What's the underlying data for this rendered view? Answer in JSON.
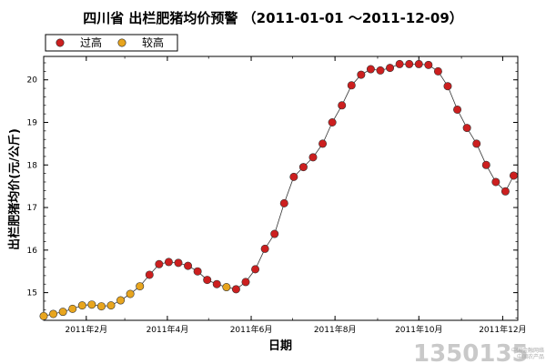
{
  "chart_data": {
    "type": "scatter",
    "title": "四川省 出栏肥猪均价预警 （2011-01-01 ～2011-12-09）",
    "xlabel": "日期",
    "ylabel": "出栏肥猪均价(元/公斤)",
    "xlim": [
      "2011-01-01",
      "2011-12-12"
    ],
    "ylim": [
      14.35,
      20.55
    ],
    "yticks": [
      15,
      16,
      17,
      18,
      19,
      20
    ],
    "xticks": [
      {
        "date": "2011-02-01",
        "label": "2011年2月"
      },
      {
        "date": "2011-04-01",
        "label": "2011年4月"
      },
      {
        "date": "2011-06-01",
        "label": "2011年6月"
      },
      {
        "date": "2011-08-01",
        "label": "2011年8月"
      },
      {
        "date": "2011-10-01",
        "label": "2011年10月"
      },
      {
        "date": "2011-12-01",
        "label": "2011年12月"
      }
    ],
    "grid": false,
    "legend": {
      "placement": "top-left",
      "entries": [
        {
          "name": "过高",
          "color": "#cc1f1f"
        },
        {
          "name": "较高",
          "color": "#e8a51e"
        }
      ]
    },
    "series": [
      {
        "name": "较高",
        "color": "#e8a51e",
        "points": [
          {
            "x": "2011-01-01",
            "y": 14.45
          },
          {
            "x": "2011-01-08",
            "y": 14.5
          },
          {
            "x": "2011-01-15",
            "y": 14.55
          },
          {
            "x": "2011-01-22",
            "y": 14.62
          },
          {
            "x": "2011-01-29",
            "y": 14.7
          },
          {
            "x": "2011-02-05",
            "y": 14.72
          },
          {
            "x": "2011-02-12",
            "y": 14.68
          },
          {
            "x": "2011-02-19",
            "y": 14.7
          },
          {
            "x": "2011-02-26",
            "y": 14.82
          },
          {
            "x": "2011-03-05",
            "y": 14.97
          },
          {
            "x": "2011-03-12",
            "y": 15.15
          },
          {
            "x": "2011-05-14",
            "y": 15.13
          }
        ]
      },
      {
        "name": "过高",
        "color": "#cc1f1f",
        "points": [
          {
            "x": "2011-03-19",
            "y": 15.42
          },
          {
            "x": "2011-03-26",
            "y": 15.67
          },
          {
            "x": "2011-04-02",
            "y": 15.72
          },
          {
            "x": "2011-04-09",
            "y": 15.7
          },
          {
            "x": "2011-04-16",
            "y": 15.63
          },
          {
            "x": "2011-04-23",
            "y": 15.5
          },
          {
            "x": "2011-04-30",
            "y": 15.3
          },
          {
            "x": "2011-05-07",
            "y": 15.2
          },
          {
            "x": "2011-05-21",
            "y": 15.08
          },
          {
            "x": "2011-05-28",
            "y": 15.25
          },
          {
            "x": "2011-06-04",
            "y": 15.55
          },
          {
            "x": "2011-06-11",
            "y": 16.03
          },
          {
            "x": "2011-06-18",
            "y": 16.38
          },
          {
            "x": "2011-06-25",
            "y": 17.1
          },
          {
            "x": "2011-07-02",
            "y": 17.72
          },
          {
            "x": "2011-07-09",
            "y": 17.95
          },
          {
            "x": "2011-07-16",
            "y": 18.18
          },
          {
            "x": "2011-07-23",
            "y": 18.5
          },
          {
            "x": "2011-07-30",
            "y": 19.0
          },
          {
            "x": "2011-08-06",
            "y": 19.4
          },
          {
            "x": "2011-08-13",
            "y": 19.87
          },
          {
            "x": "2011-08-20",
            "y": 20.12
          },
          {
            "x": "2011-08-27",
            "y": 20.25
          },
          {
            "x": "2011-09-03",
            "y": 20.22
          },
          {
            "x": "2011-09-10",
            "y": 20.28
          },
          {
            "x": "2011-09-17",
            "y": 20.37
          },
          {
            "x": "2011-09-24",
            "y": 20.37
          },
          {
            "x": "2011-10-01",
            "y": 20.37
          },
          {
            "x": "2011-10-08",
            "y": 20.35
          },
          {
            "x": "2011-10-15",
            "y": 20.2
          },
          {
            "x": "2011-10-22",
            "y": 19.85
          },
          {
            "x": "2011-10-29",
            "y": 19.3
          },
          {
            "x": "2011-11-05",
            "y": 18.87
          },
          {
            "x": "2011-11-12",
            "y": 18.5
          },
          {
            "x": "2011-11-19",
            "y": 18.0
          },
          {
            "x": "2011-11-26",
            "y": 17.6
          },
          {
            "x": "2011-12-03",
            "y": 17.38
          },
          {
            "x": "2011-12-09",
            "y": 17.75
          }
        ]
      }
    ]
  },
  "watermark": {
    "logo_text": "1350135",
    "small_text": "中国金融网络\n中国农产品"
  }
}
